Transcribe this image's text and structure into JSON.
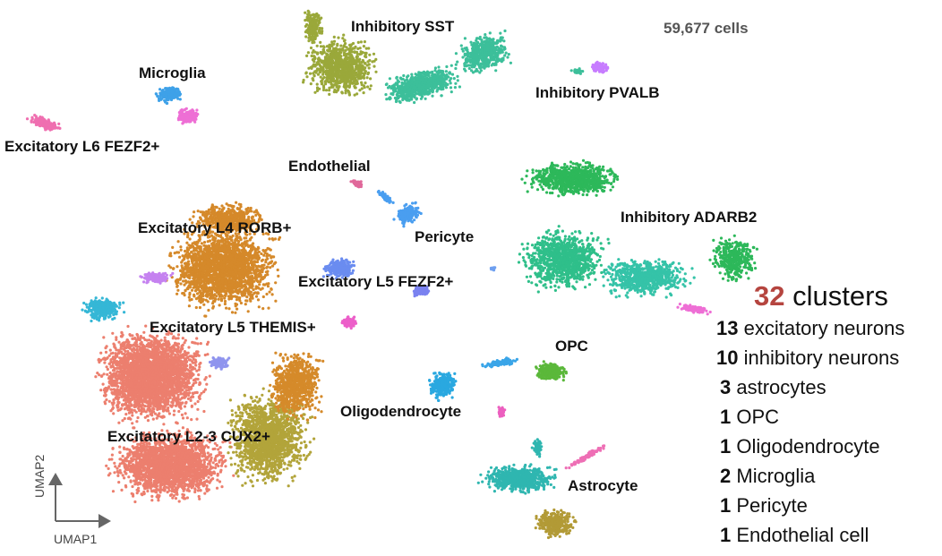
{
  "chart_data": {
    "type": "scatter",
    "xlabel": "UMAP1",
    "ylabel": "UMAP2",
    "cell_count": "59,677 cells",
    "clusters": [
      {
        "name": "Inhibitory SST",
        "color": "#9aa83a"
      },
      {
        "name": "Inhibitory PVALB",
        "color": "#c77cff"
      },
      {
        "name": "Microglia",
        "color": "#3ea1e8"
      },
      {
        "name": "Excitatory L6 FEZF2+",
        "color": "#ef6fb0"
      },
      {
        "name": "Endothelial",
        "color": "#e0689a"
      },
      {
        "name": "Pericyte",
        "color": "#4a9ef0"
      },
      {
        "name": "Inhibitory ADARB2",
        "color": "#2db85a"
      },
      {
        "name": "Excitatory L4 RORB+",
        "color": "#d5892a"
      },
      {
        "name": "Excitatory L5 FEZF2+",
        "color": "#6a8cf0"
      },
      {
        "name": "Excitatory L5 THEMIS+",
        "color": "#ec5fc9"
      },
      {
        "name": "OPC",
        "color": "#5bb83a"
      },
      {
        "name": "Oligodendrocyte",
        "color": "#2aa8e0"
      },
      {
        "name": "Excitatory L2-3 CUX2+",
        "color": "#ec7f6e"
      },
      {
        "name": "Astrocyte",
        "color": "#2fb6b0"
      }
    ],
    "summary": {
      "total": "32",
      "total_label": "clusters",
      "rows": [
        {
          "n": "13",
          "label": "excitatory neurons"
        },
        {
          "n": "10",
          "label": "inhibitory neurons"
        },
        {
          "n": "3",
          "label": "astrocytes"
        },
        {
          "n": "1",
          "label": "OPC"
        },
        {
          "n": "1",
          "label": "Oligodendrocyte"
        },
        {
          "n": "2",
          "label": "Microglia"
        },
        {
          "n": "1",
          "label": "Pericyte"
        },
        {
          "n": "1",
          "label": "Endothelial cell"
        }
      ]
    }
  }
}
